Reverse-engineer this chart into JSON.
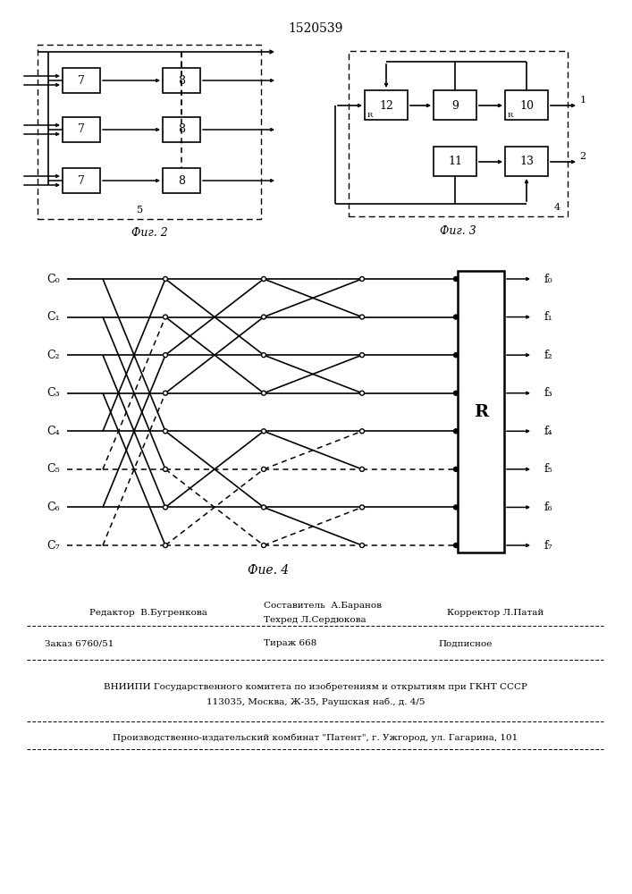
{
  "title": "1520539",
  "fig2_label": "Фиг. 2",
  "fig3_label": "Фиг. 3",
  "fig4_label": "Фие. 4",
  "c_labels": [
    "C₀",
    "C₁",
    "C₂",
    "C₃",
    "C₄",
    "C₅",
    "C₆",
    "C₇"
  ],
  "f_labels": [
    "f₀",
    "f₁",
    "f₂",
    "f₃",
    "f₄",
    "f₅",
    "f₆",
    "f₇"
  ],
  "footer_editor": "Редактор  В.Бугренкова",
  "footer_comp": "Составитель  А.Баранов",
  "footer_tech": "Техред Л.Сердюкова",
  "footer_corr": "Корректор Л.Патай",
  "footer_order": "Заказ 6760/51",
  "footer_circ": "Тираж 668",
  "footer_sub": "Подписное",
  "footer_vnipi1": "ВНИИПИ Государственного комитета по изобретениям и открытиям при ГКНТ СССР",
  "footer_vnipi2": "113035, Москва, Ж-35, Раушская наб., д. 4/5",
  "footer_patent": "Производственно-издательский комбинат \"Патент\", г. Ужгород, ул. Гагарина, 101"
}
